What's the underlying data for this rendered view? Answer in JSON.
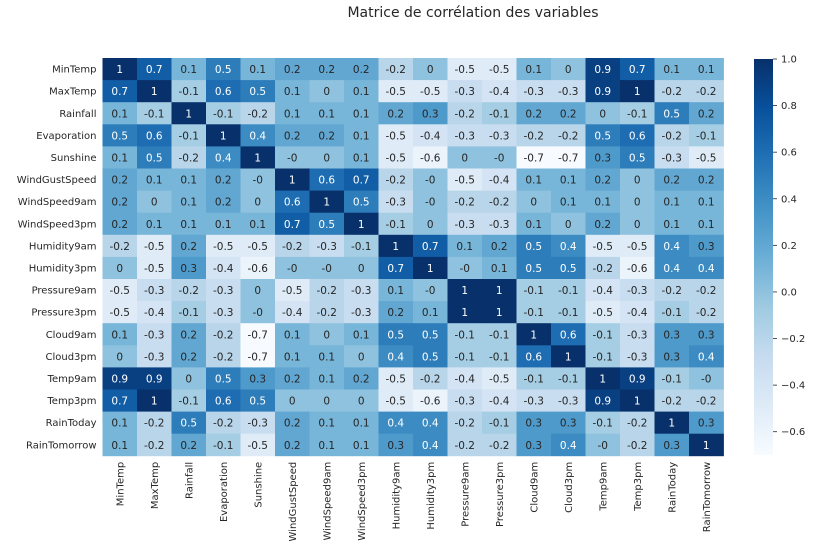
{
  "chart_data": {
    "type": "heatmap",
    "title": "Matrice de corrélation des variables",
    "labels": [
      "MinTemp",
      "MaxTemp",
      "Rainfall",
      "Evaporation",
      "Sunshine",
      "WindGustSpeed",
      "WindSpeed9am",
      "WindSpeed3pm",
      "Humidity9am",
      "Humidity3pm",
      "Pressure9am",
      "Pressure3pm",
      "Cloud9am",
      "Cloud3pm",
      "Temp9am",
      "Temp3pm",
      "RainToday",
      "RainTomorrow"
    ],
    "value_labels": [
      [
        "1",
        "0.7",
        "0.1",
        "0.5",
        "0.1",
        "0.2",
        "0.2",
        "0.2",
        "-0.2",
        "0",
        "-0.5",
        "-0.5",
        "0.1",
        "0",
        "0.9",
        "0.7",
        "0.1",
        "0.1"
      ],
      [
        "0.7",
        "1",
        "-0.1",
        "0.6",
        "0.5",
        "0.1",
        "0",
        "0.1",
        "-0.5",
        "-0.5",
        "-0.3",
        "-0.4",
        "-0.3",
        "-0.3",
        "0.9",
        "1",
        "-0.2",
        "-0.2"
      ],
      [
        "0.1",
        "-0.1",
        "1",
        "-0.1",
        "-0.2",
        "0.1",
        "0.1",
        "0.1",
        "0.2",
        "0.3",
        "-0.2",
        "-0.1",
        "0.2",
        "0.2",
        "0",
        "-0.1",
        "0.5",
        "0.2"
      ],
      [
        "0.5",
        "0.6",
        "-0.1",
        "1",
        "0.4",
        "0.2",
        "0.2",
        "0.1",
        "-0.5",
        "-0.4",
        "-0.3",
        "-0.3",
        "-0.2",
        "-0.2",
        "0.5",
        "0.6",
        "-0.2",
        "-0.1"
      ],
      [
        "0.1",
        "0.5",
        "-0.2",
        "0.4",
        "1",
        "-0",
        "0",
        "0.1",
        "-0.5",
        "-0.6",
        "0",
        "-0",
        "-0.7",
        "-0.7",
        "0.3",
        "0.5",
        "-0.3",
        "-0.5"
      ],
      [
        "0.2",
        "0.1",
        "0.1",
        "0.2",
        "-0",
        "1",
        "0.6",
        "0.7",
        "-0.2",
        "-0",
        "-0.5",
        "-0.4",
        "0.1",
        "0.1",
        "0.2",
        "0",
        "0.2",
        "0.2"
      ],
      [
        "0.2",
        "0",
        "0.1",
        "0.2",
        "0",
        "0.6",
        "1",
        "0.5",
        "-0.3",
        "-0",
        "-0.2",
        "-0.2",
        "0",
        "0.1",
        "0.1",
        "0",
        "0.1",
        "0.1"
      ],
      [
        "0.2",
        "0.1",
        "0.1",
        "0.1",
        "0.1",
        "0.7",
        "0.5",
        "1",
        "-0.1",
        "0",
        "-0.3",
        "-0.3",
        "0.1",
        "0",
        "0.2",
        "0",
        "0.1",
        "0.1"
      ],
      [
        "-0.2",
        "-0.5",
        "0.2",
        "-0.5",
        "-0.5",
        "-0.2",
        "-0.3",
        "-0.1",
        "1",
        "0.7",
        "0.1",
        "0.2",
        "0.5",
        "0.4",
        "-0.5",
        "-0.5",
        "0.4",
        "0.3"
      ],
      [
        "0",
        "-0.5",
        "0.3",
        "-0.4",
        "-0.6",
        "-0",
        "-0",
        "0",
        "0.7",
        "1",
        "-0",
        "0.1",
        "0.5",
        "0.5",
        "-0.2",
        "-0.6",
        "0.4",
        "0.4"
      ],
      [
        "-0.5",
        "-0.3",
        "-0.2",
        "-0.3",
        "0",
        "-0.5",
        "-0.2",
        "-0.3",
        "0.1",
        "-0",
        "1",
        "1",
        "-0.1",
        "-0.1",
        "-0.4",
        "-0.3",
        "-0.2",
        "-0.2"
      ],
      [
        "-0.5",
        "-0.4",
        "-0.1",
        "-0.3",
        "-0",
        "-0.4",
        "-0.2",
        "-0.3",
        "0.2",
        "0.1",
        "1",
        "1",
        "-0.1",
        "-0.1",
        "-0.5",
        "-0.4",
        "-0.1",
        "-0.2"
      ],
      [
        "0.1",
        "-0.3",
        "0.2",
        "-0.2",
        "-0.7",
        "0.1",
        "0",
        "0.1",
        "0.5",
        "0.5",
        "-0.1",
        "-0.1",
        "1",
        "0.6",
        "-0.1",
        "-0.3",
        "0.3",
        "0.3"
      ],
      [
        "0",
        "-0.3",
        "0.2",
        "-0.2",
        "-0.7",
        "0.1",
        "0.1",
        "0",
        "0.4",
        "0.5",
        "-0.1",
        "-0.1",
        "0.6",
        "1",
        "-0.1",
        "-0.3",
        "0.3",
        "0.4"
      ],
      [
        "0.9",
        "0.9",
        "0",
        "0.5",
        "0.3",
        "0.2",
        "0.1",
        "0.2",
        "-0.5",
        "-0.2",
        "-0.4",
        "-0.5",
        "-0.1",
        "-0.1",
        "1",
        "0.9",
        "-0.1",
        "-0"
      ],
      [
        "0.7",
        "1",
        "-0.1",
        "0.6",
        "0.5",
        "0",
        "0",
        "0",
        "-0.5",
        "-0.6",
        "-0.3",
        "-0.4",
        "-0.3",
        "-0.3",
        "0.9",
        "1",
        "-0.2",
        "-0.2"
      ],
      [
        "0.1",
        "-0.2",
        "0.5",
        "-0.2",
        "-0.3",
        "0.2",
        "0.1",
        "0.1",
        "0.4",
        "0.4",
        "-0.2",
        "-0.1",
        "0.3",
        "0.3",
        "-0.1",
        "-0.2",
        "1",
        "0.3"
      ],
      [
        "0.1",
        "-0.2",
        "0.2",
        "-0.1",
        "-0.5",
        "0.2",
        "0.1",
        "0.1",
        "0.3",
        "0.4",
        "-0.2",
        "-0.2",
        "0.3",
        "0.4",
        "-0",
        "-0.2",
        "0.3",
        "1"
      ]
    ],
    "colorbar": {
      "ticks": [
        "1.0",
        "0.8",
        "0.6",
        "0.4",
        "0.2",
        "0.0",
        "−0.2",
        "−0.4",
        "−0.6"
      ],
      "tick_values": [
        1.0,
        0.8,
        0.6,
        0.4,
        0.2,
        0.0,
        -0.2,
        -0.4,
        -0.6
      ],
      "range": [
        -0.7,
        1.0
      ]
    },
    "colormap": "Blues",
    "colors": [
      "#f7fbff",
      "#deebf7",
      "#c6dbef",
      "#9ecae1",
      "#6baed6",
      "#4292c6",
      "#2171b5",
      "#08519c",
      "#08306b"
    ]
  }
}
